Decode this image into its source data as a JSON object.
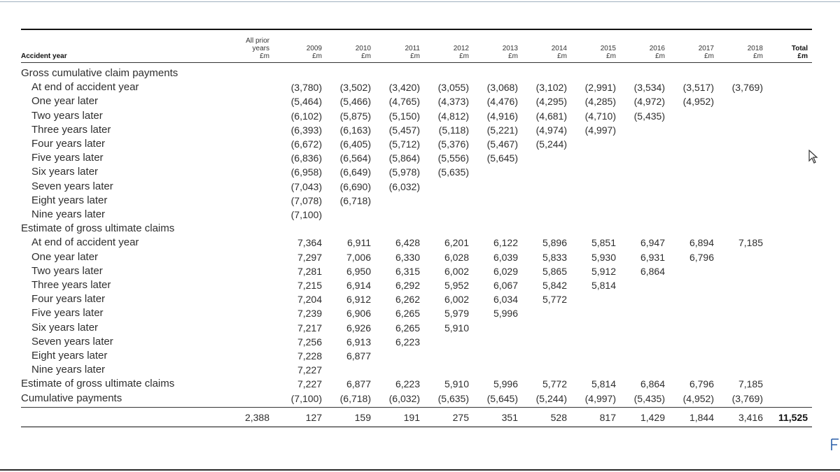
{
  "header": {
    "accident_year_label": "Accident year",
    "columns": [
      {
        "lines": [
          "All prior",
          "years",
          "£m"
        ]
      },
      {
        "lines": [
          "2009",
          "£m"
        ]
      },
      {
        "lines": [
          "2010",
          "£m"
        ]
      },
      {
        "lines": [
          "2011",
          "£m"
        ]
      },
      {
        "lines": [
          "2012",
          "£m"
        ]
      },
      {
        "lines": [
          "2013",
          "£m"
        ]
      },
      {
        "lines": [
          "2014",
          "£m"
        ]
      },
      {
        "lines": [
          "2015",
          "£m"
        ]
      },
      {
        "lines": [
          "2016",
          "£m"
        ]
      },
      {
        "lines": [
          "2017",
          "£m"
        ]
      },
      {
        "lines": [
          "2018",
          "£m"
        ]
      },
      {
        "lines": [
          "Total",
          "£m"
        ],
        "bold": true
      }
    ]
  },
  "sections": [
    {
      "title": "Gross cumulative claim payments",
      "rows": [
        {
          "label": "At end of accident year",
          "values": [
            "",
            "(3,780)",
            "(3,502)",
            "(3,420)",
            "(3,055)",
            "(3,068)",
            "(3,102)",
            "(2,991)",
            "(3,534)",
            "(3,517)",
            "(3,769)",
            ""
          ]
        },
        {
          "label": "One year later",
          "values": [
            "",
            "(5,464)",
            "(5,466)",
            "(4,765)",
            "(4,373)",
            "(4,476)",
            "(4,295)",
            "(4,285)",
            "(4,972)",
            "(4,952)",
            "",
            ""
          ]
        },
        {
          "label": "Two years later",
          "values": [
            "",
            "(6,102)",
            "(5,875)",
            "(5,150)",
            "(4,812)",
            "(4,916)",
            "(4,681)",
            "(4,710)",
            "(5,435)",
            "",
            "",
            ""
          ]
        },
        {
          "label": "Three years later",
          "values": [
            "",
            "(6,393)",
            "(6,163)",
            "(5,457)",
            "(5,118)",
            "(5,221)",
            "(4,974)",
            "(4,997)",
            "",
            "",
            "",
            ""
          ]
        },
        {
          "label": "Four years later",
          "values": [
            "",
            "(6,672)",
            "(6,405)",
            "(5,712)",
            "(5,376)",
            "(5,467)",
            "(5,244)",
            "",
            "",
            "",
            "",
            ""
          ]
        },
        {
          "label": "Five years later",
          "values": [
            "",
            "(6,836)",
            "(6,564)",
            "(5,864)",
            "(5,556)",
            "(5,645)",
            "",
            "",
            "",
            "",
            "",
            ""
          ]
        },
        {
          "label": "Six years later",
          "values": [
            "",
            "(6,958)",
            "(6,649)",
            "(5,978)",
            "(5,635)",
            "",
            "",
            "",
            "",
            "",
            "",
            ""
          ]
        },
        {
          "label": "Seven years later",
          "values": [
            "",
            "(7,043)",
            "(6,690)",
            "(6,032)",
            "",
            "",
            "",
            "",
            "",
            "",
            "",
            ""
          ]
        },
        {
          "label": "Eight years later",
          "values": [
            "",
            "(7,078)",
            "(6,718)",
            "",
            "",
            "",
            "",
            "",
            "",
            "",
            "",
            ""
          ]
        },
        {
          "label": "Nine years later",
          "values": [
            "",
            "(7,100)",
            "",
            "",
            "",
            "",
            "",
            "",
            "",
            "",
            "",
            ""
          ]
        }
      ]
    },
    {
      "title": "Estimate of gross ultimate claims",
      "rows": [
        {
          "label": "At end of accident year",
          "values": [
            "",
            "7,364",
            "6,911",
            "6,428",
            "6,201",
            "6,122",
            "5,896",
            "5,851",
            "6,947",
            "6,894",
            "7,185",
            ""
          ]
        },
        {
          "label": "One year later",
          "values": [
            "",
            "7,297",
            "7,006",
            "6,330",
            "6,028",
            "6,039",
            "5,833",
            "5,930",
            "6,931",
            "6,796",
            "",
            ""
          ]
        },
        {
          "label": "Two years later",
          "values": [
            "",
            "7,281",
            "6,950",
            "6,315",
            "6,002",
            "6,029",
            "5,865",
            "5,912",
            "6,864",
            "",
            "",
            ""
          ]
        },
        {
          "label": "Three years later",
          "values": [
            "",
            "7,215",
            "6,914",
            "6,292",
            "5,952",
            "6,067",
            "5,842",
            "5,814",
            "",
            "",
            "",
            ""
          ]
        },
        {
          "label": "Four years later",
          "values": [
            "",
            "7,204",
            "6,912",
            "6,262",
            "6,002",
            "6,034",
            "5,772",
            "",
            "",
            "",
            "",
            ""
          ]
        },
        {
          "label": "Five years later",
          "values": [
            "",
            "7,239",
            "6,906",
            "6,265",
            "5,979",
            "5,996",
            "",
            "",
            "",
            "",
            "",
            ""
          ]
        },
        {
          "label": "Six years later",
          "values": [
            "",
            "7,217",
            "6,926",
            "6,265",
            "5,910",
            "",
            "",
            "",
            "",
            "",
            "",
            ""
          ]
        },
        {
          "label": "Seven years later",
          "values": [
            "",
            "7,256",
            "6,913",
            "6,223",
            "",
            "",
            "",
            "",
            "",
            "",
            "",
            ""
          ]
        },
        {
          "label": "Eight years later",
          "values": [
            "",
            "7,228",
            "6,877",
            "",
            "",
            "",
            "",
            "",
            "",
            "",
            "",
            ""
          ]
        },
        {
          "label": "Nine years later",
          "values": [
            "",
            "7,227",
            "",
            "",
            "",
            "",
            "",
            "",
            "",
            "",
            "",
            ""
          ]
        }
      ]
    }
  ],
  "summary_rows": [
    {
      "label": "Estimate of gross ultimate claims",
      "values": [
        "",
        "7,227",
        "6,877",
        "6,223",
        "5,910",
        "5,996",
        "5,772",
        "5,814",
        "6,864",
        "6,796",
        "7,185",
        ""
      ]
    },
    {
      "label": "Cumulative payments",
      "values": [
        "",
        "(7,100)",
        "(6,718)",
        "(6,032)",
        "(5,635)",
        "(5,645)",
        "(5,244)",
        "(4,997)",
        "(5,435)",
        "(4,952)",
        "(3,769)",
        ""
      ]
    }
  ],
  "total_row": {
    "values": [
      "2,388",
      "127",
      "159",
      "191",
      "275",
      "351",
      "528",
      "817",
      "1,429",
      "1,844",
      "3,416",
      "11,525"
    ]
  },
  "icons": {
    "cursor": "mouse-pointer-icon",
    "edge": "partial-glyph-icon"
  }
}
